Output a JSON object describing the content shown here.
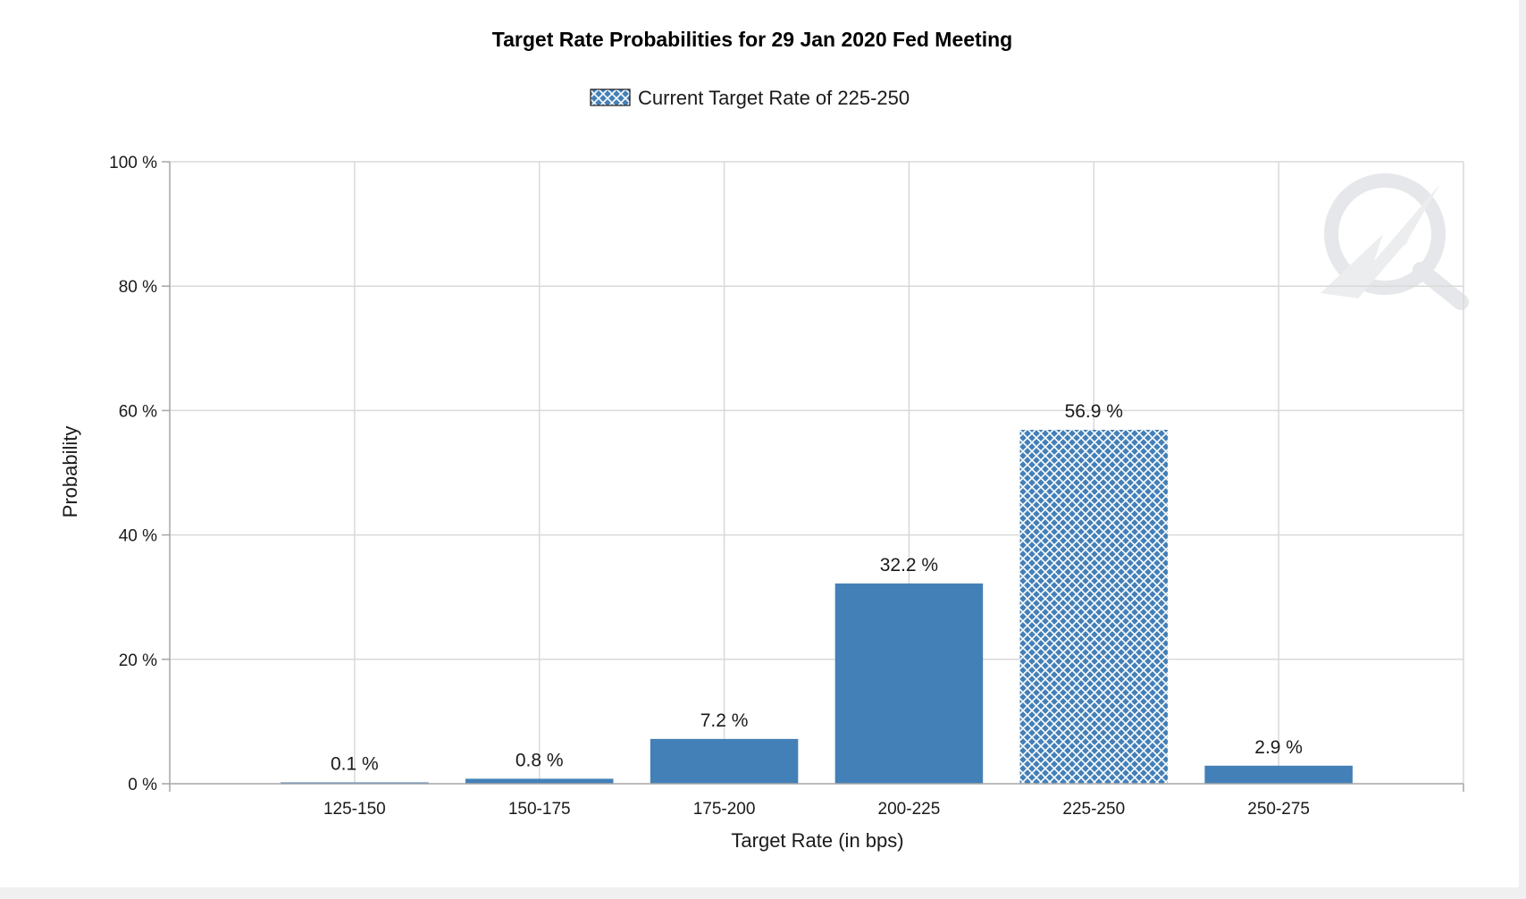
{
  "colors": {
    "bar": "#4480b8",
    "pattern_line": "#ffffff",
    "grid": "#d9d9d9",
    "frame_background": "#f0f0f0"
  },
  "watermark": {
    "icon": "quikstrike-q-logo-watermark"
  },
  "chart_data": {
    "type": "bar",
    "title": "Target Rate Probabilities for 29 Jan 2020 Fed Meeting",
    "xlabel": "Target Rate (in bps)",
    "ylabel": "Probability",
    "categories": [
      "125-150",
      "150-175",
      "175-200",
      "200-225",
      "225-250",
      "250-275"
    ],
    "values": [
      0.1,
      0.8,
      7.2,
      32.2,
      56.9,
      2.9
    ],
    "data_labels": [
      "0.1 %",
      "0.8 %",
      "7.2 %",
      "32.2 %",
      "56.9 %",
      "2.9 %"
    ],
    "highlight_category": "225-250",
    "highlight_style": "crosshatch",
    "ylim": [
      0,
      100
    ],
    "yticks": [
      0,
      20,
      40,
      60,
      80,
      100
    ],
    "ytick_labels": [
      "0 %",
      "20 %",
      "40 %",
      "60 %",
      "80 %",
      "100 %"
    ],
    "grid": true,
    "legend": {
      "position": "top-center",
      "entries": [
        {
          "label": "Current Target Rate of 225-250",
          "style": "crosshatch"
        }
      ]
    }
  }
}
